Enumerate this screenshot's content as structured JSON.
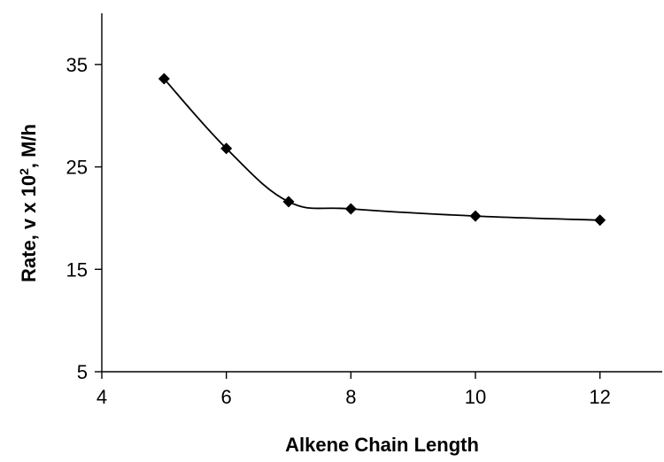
{
  "chart_data": {
    "type": "line",
    "title": "",
    "xlabel": "Alkene Chain Length",
    "ylabel": {
      "prefix": "Rate, v x 10",
      "superscript": "2",
      "suffix": ", M/h"
    },
    "xlim": [
      4,
      13
    ],
    "ylim": [
      5,
      40
    ],
    "xticks": [
      4,
      6,
      8,
      10,
      12
    ],
    "yticks": [
      5,
      15,
      25,
      35
    ],
    "grid": false,
    "legend": "none",
    "smooth": true,
    "marker": "diamond",
    "series_color": "#000000",
    "series": [
      {
        "x": [
          5,
          6,
          7,
          8,
          10,
          12
        ],
        "y": [
          33.6,
          26.8,
          21.6,
          20.9,
          20.2,
          19.8
        ]
      }
    ]
  }
}
